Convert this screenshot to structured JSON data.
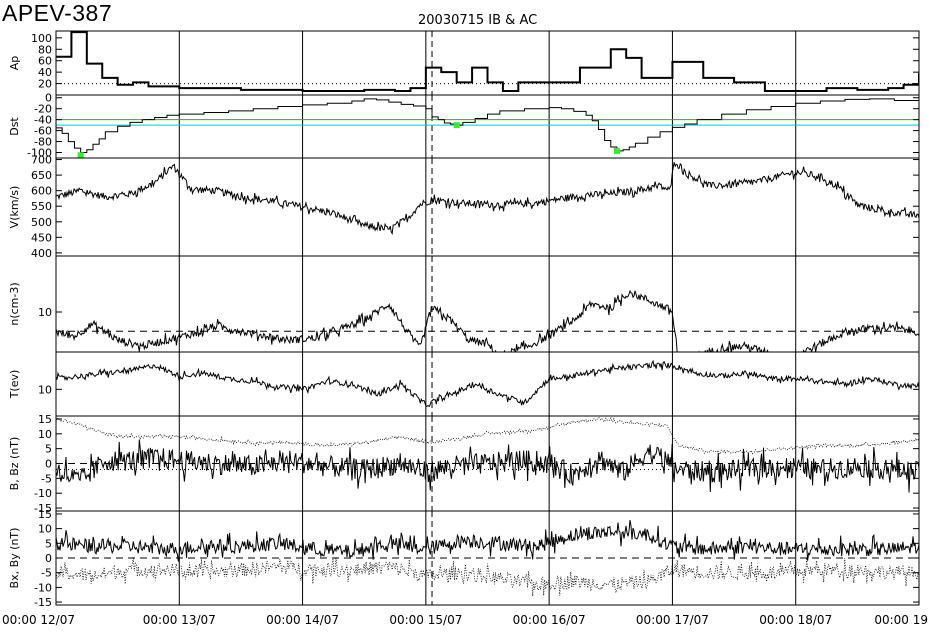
{
  "header": {
    "event_id": "APEV-387",
    "subtitle": "20030715 IB & AC"
  },
  "chart_data": {
    "type": "line",
    "x_tick_labels": [
      "00:00 12/07",
      "00:00 13/07",
      "00:00 14/07",
      "00:00 15/07",
      "00:00 16/07",
      "00:00 17/07",
      "00:00 18/07",
      "00:00 19"
    ],
    "x_range_days": [
      12.0,
      19.0
    ],
    "event_marker_day": 15.05,
    "panels": [
      {
        "id": "ap",
        "ylabel": "Ap",
        "yticks": [
          "100",
          "80",
          "60",
          "40",
          "20"
        ],
        "ylim": [
          0,
          112
        ],
        "reference_lines": [
          {
            "value": 20,
            "style": "dotted",
            "color": "#000000"
          }
        ],
        "series": [
          {
            "color": "#000000",
            "style": "step",
            "x": [
              12.0,
              12.125,
              12.25,
              12.375,
              12.5,
              12.625,
              12.75,
              12.875,
              13.0,
              13.25,
              13.5,
              13.75,
              14.0,
              14.25,
              14.5,
              14.75,
              14.875,
              15.0,
              15.125,
              15.25,
              15.375,
              15.5,
              15.625,
              15.75,
              16.0,
              16.25,
              16.375,
              16.5,
              16.625,
              16.75,
              16.875,
              17.0,
              17.25,
              17.5,
              17.75,
              18.0,
              18.25,
              18.5,
              18.75,
              18.875,
              19.0
            ],
            "y": [
              67,
              110,
              55,
              30,
              18,
              22,
              15,
              15,
              12,
              12,
              9,
              9,
              7,
              7,
              9,
              7,
              12,
              48,
              40,
              22,
              48,
              22,
              7,
              22,
              22,
              48,
              48,
              80,
              65,
              30,
              30,
              58,
              30,
              22,
              7,
              7,
              12,
              9,
              12,
              18,
              38
            ]
          }
        ]
      },
      {
        "id": "dst",
        "ylabel": "Dst",
        "yticks": [
          "0",
          "-20",
          "-40",
          "-60",
          "-80",
          "-100"
        ],
        "ylim": [
          -110,
          5
        ],
        "reference_lines": [
          {
            "value": -40,
            "style": "solid",
            "color": "#00cc00"
          },
          {
            "value": -50,
            "style": "solid",
            "color": "#00cccc"
          }
        ],
        "markers": [
          {
            "x": 12.2,
            "y": -105,
            "color": "#33ee33"
          },
          {
            "x": 15.25,
            "y": -50,
            "color": "#33ee33"
          },
          {
            "x": 16.55,
            "y": -97,
            "color": "#33ee33"
          }
        ],
        "series": [
          {
            "color": "#000000",
            "style": "step",
            "x": [
              12.0,
              12.05,
              12.1,
              12.15,
              12.2,
              12.25,
              12.3,
              12.35,
              12.4,
              12.5,
              12.6,
              12.7,
              12.8,
              12.9,
              13.0,
              13.2,
              13.4,
              13.6,
              13.8,
              14.0,
              14.2,
              14.4,
              14.5,
              14.6,
              14.7,
              14.8,
              14.9,
              15.0,
              15.05,
              15.1,
              15.15,
              15.2,
              15.25,
              15.3,
              15.4,
              15.5,
              15.6,
              15.8,
              16.0,
              16.1,
              16.2,
              16.3,
              16.35,
              16.4,
              16.45,
              16.5,
              16.55,
              16.6,
              16.65,
              16.7,
              16.8,
              16.9,
              17.0,
              17.1,
              17.2,
              17.4,
              17.6,
              17.8,
              18.0,
              18.2,
              18.4,
              18.6,
              18.8,
              19.0
            ],
            "y": [
              -55,
              -65,
              -80,
              -92,
              -100,
              -95,
              -85,
              -75,
              -62,
              -52,
              -45,
              -40,
              -36,
              -32,
              -30,
              -27,
              -24,
              -20,
              -16,
              -13,
              -10,
              -6,
              -2,
              -4,
              -8,
              -12,
              -15,
              -20,
              -35,
              -40,
              -46,
              -48,
              -50,
              -45,
              -38,
              -30,
              -24,
              -20,
              -18,
              -20,
              -25,
              -32,
              -42,
              -58,
              -78,
              -90,
              -97,
              -95,
              -90,
              -83,
              -72,
              -62,
              -54,
              -48,
              -40,
              -30,
              -22,
              -16,
              -10,
              -6,
              -3,
              -2,
              -5,
              -10
            ]
          }
        ]
      },
      {
        "id": "v",
        "ylabel": "V(km/s)",
        "yticks": [
          "700",
          "650",
          "600",
          "550",
          "500",
          "450",
          "400"
        ],
        "ylim": [
          390,
          705
        ],
        "series": [
          {
            "color": "#000000",
            "style": "noisy_line",
            "noise": 14,
            "x": [
              12.0,
              12.2,
              12.4,
              12.6,
              12.8,
              12.95,
              13.1,
              13.3,
              13.5,
              13.7,
              13.9,
              14.1,
              14.3,
              14.5,
              14.7,
              14.85,
              14.95,
              15.05,
              15.3,
              15.6,
              15.9,
              16.1,
              16.3,
              16.5,
              16.7,
              16.9,
              16.98,
              17.02,
              17.1,
              17.3,
              17.5,
              17.7,
              17.9,
              18.0,
              18.2,
              18.35,
              18.5,
              18.7,
              18.9,
              19.0
            ],
            "y": [
              580,
              600,
              580,
              590,
              625,
              680,
              605,
              600,
              580,
              570,
              555,
              540,
              520,
              488,
              475,
              510,
              555,
              570,
              560,
              555,
              560,
              575,
              585,
              590,
              600,
              615,
              600,
              700,
              660,
              615,
              620,
              630,
              650,
              660,
              645,
              610,
              555,
              535,
              525,
              520
            ]
          }
        ]
      },
      {
        "id": "n",
        "ylabel": "n(cm-3)",
        "yticks": [
          "10"
        ],
        "ylim": [
          0,
          24
        ],
        "reference_lines": [
          {
            "value": 5.2,
            "style": "dashed",
            "color": "#000000"
          }
        ],
        "series": [
          {
            "color": "#000000",
            "style": "noisy_line",
            "noise": 1.2,
            "x": [
              12.0,
              12.15,
              12.3,
              12.5,
              12.7,
              12.9,
              13.1,
              13.3,
              13.5,
              13.7,
              13.9,
              14.1,
              14.3,
              14.5,
              14.7,
              14.85,
              14.95,
              15.05,
              15.2,
              15.35,
              15.5,
              15.6,
              15.8,
              16.0,
              16.2,
              16.35,
              16.5,
              16.65,
              16.8,
              16.95,
              17.0,
              17.05,
              17.2,
              17.4,
              17.6,
              17.8,
              17.95,
              18.2,
              18.4,
              18.6,
              18.8,
              19.0
            ],
            "y": [
              5,
              4,
              7,
              3,
              1.5,
              3,
              4.5,
              6.5,
              5.2,
              4,
              3,
              3.5,
              5.5,
              8,
              12,
              5,
              1,
              11,
              8,
              3,
              2,
              -1,
              1,
              4,
              8,
              12,
              11,
              15,
              13,
              11,
              10,
              -3,
              -1,
              1,
              1.5,
              -0.5,
              -1.5,
              2,
              5,
              6,
              6,
              5
            ]
          }
        ]
      },
      {
        "id": "t",
        "ylabel": "T(ev)",
        "yticks": [
          "10"
        ],
        "ylim": [
          0,
          24
        ],
        "series": [
          {
            "color": "#000000",
            "style": "noisy_line",
            "noise": 1.2,
            "x": [
              12.0,
              12.2,
              12.4,
              12.6,
              12.8,
              13.0,
              13.2,
              13.4,
              13.6,
              13.8,
              14.0,
              14.2,
              14.4,
              14.6,
              14.8,
              15.0,
              15.2,
              15.4,
              15.6,
              15.8,
              16.0,
              16.2,
              16.4,
              16.6,
              16.8,
              17.0,
              17.2,
              17.4,
              17.6,
              17.8,
              18.0,
              18.2,
              18.4,
              18.6,
              18.8,
              19.0
            ],
            "y": [
              14,
              15,
              16,
              17,
              19,
              15,
              16,
              14,
              13,
              11,
              10,
              13,
              12,
              8,
              12,
              4,
              8,
              12,
              8,
              5,
              14,
              15,
              17,
              18,
              19,
              19,
              16,
              15,
              16,
              14,
              14,
              13,
              12,
              14,
              12,
              11
            ]
          }
        ]
      },
      {
        "id": "bz",
        "ylabel": "B, Bz (nT)",
        "yticks": [
          "15",
          "10",
          "5",
          "0",
          "-5",
          "-10",
          "-15"
        ],
        "ylim": [
          -16,
          16
        ],
        "reference_lines": [
          {
            "value": 0,
            "style": "dashed",
            "color": "#000000"
          },
          {
            "value": -2,
            "style": "dotted",
            "color": "#000000"
          }
        ],
        "series": [
          {
            "name": "",
            "color": "#000000",
            "style": "dotted_line",
            "noise": 0.6,
            "x": [
              12.0,
              12.2,
              12.4,
              12.6,
              12.8,
              13.0,
              13.3,
              13.6,
              13.9,
              14.2,
              14.5,
              14.8,
              15.0,
              15.2,
              15.5,
              15.8,
              16.0,
              16.2,
              16.4,
              16.6,
              16.8,
              16.95,
              17.05,
              17.3,
              17.6,
              17.9,
              18.2,
              18.5,
              18.8,
              19.0
            ],
            "y": [
              15,
              13,
              10,
              9,
              9,
              9,
              8,
              7,
              7,
              6,
              7,
              9,
              7,
              8,
              10,
              11,
              12,
              14,
              15,
              14,
              13,
              13,
              6,
              4,
              4,
              5,
              6,
              6,
              7,
              8
            ]
          },
          {
            "name": "",
            "color": "#000000",
            "style": "noisy_line",
            "noise": 4.5,
            "x": [
              12.0,
              12.2,
              12.4,
              12.6,
              12.8,
              13.0,
              13.3,
              13.6,
              13.9,
              14.2,
              14.5,
              14.8,
              15.0,
              15.2,
              15.5,
              15.8,
              16.0,
              16.2,
              16.4,
              16.6,
              16.8,
              16.95,
              17.05,
              17.3,
              17.6,
              17.9,
              18.2,
              18.5,
              18.8,
              19.0
            ],
            "y": [
              -2,
              -6,
              1,
              1,
              2,
              1,
              0,
              -1,
              1,
              -1,
              -2,
              0,
              -3,
              -1,
              0,
              1,
              0,
              -4,
              2,
              -3,
              4,
              1,
              -2,
              -3,
              -2,
              -1,
              -2,
              -1,
              -2,
              -3
            ]
          }
        ]
      },
      {
        "id": "bxby",
        "ylabel": "Bx, By (nT)",
        "yticks": [
          "15",
          "10",
          "5",
          "0",
          "-5",
          "-10",
          "-15"
        ],
        "ylim": [
          -16,
          16
        ],
        "reference_lines": [
          {
            "value": 0,
            "style": "dashed",
            "color": "#000000"
          }
        ],
        "series": [
          {
            "name": "",
            "color": "#000000",
            "style": "dotted_line",
            "noise": 3.0,
            "x": [
              12.0,
              12.3,
              12.6,
              12.9,
              13.2,
              13.5,
              13.8,
              14.1,
              14.4,
              14.7,
              15.0,
              15.3,
              15.6,
              15.9,
              16.2,
              16.5,
              16.8,
              17.0,
              17.3,
              17.6,
              17.9,
              18.2,
              18.5,
              18.8,
              19.0
            ],
            "y": [
              -5,
              -6,
              -4,
              -4,
              -5,
              -4,
              -3,
              -4,
              -4,
              -3,
              -6,
              -5,
              -7,
              -9,
              -8,
              -9,
              -8,
              -4,
              -5,
              -5,
              -5,
              -4,
              -4,
              -5,
              -5
            ]
          },
          {
            "name": "",
            "color": "#000000",
            "style": "noisy_line",
            "noise": 3.0,
            "x": [
              12.0,
              12.3,
              12.6,
              12.9,
              13.2,
              13.5,
              13.8,
              14.1,
              14.4,
              14.7,
              15.0,
              15.3,
              15.6,
              15.9,
              16.2,
              16.5,
              16.8,
              17.0,
              17.3,
              17.6,
              17.9,
              18.2,
              18.5,
              18.8,
              19.0
            ],
            "y": [
              5,
              4,
              4,
              3,
              4,
              4,
              5,
              3,
              2,
              5,
              3,
              6,
              5,
              4,
              8,
              9,
              8,
              4,
              3,
              4,
              3,
              3,
              3,
              3,
              4
            ]
          }
        ]
      }
    ]
  }
}
